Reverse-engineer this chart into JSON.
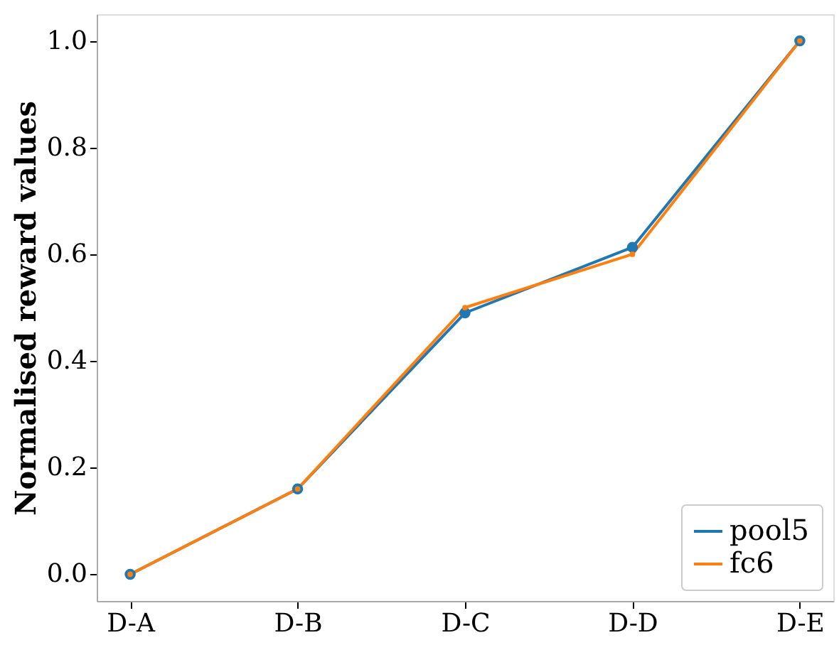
{
  "chart_data": {
    "type": "line",
    "ylabel": "Normalised reward values",
    "categories": [
      "D-A",
      "D-B",
      "D-C",
      "D-D",
      "D-E"
    ],
    "series": [
      {
        "name": "pool5",
        "color": "#1f77b4",
        "values": [
          0.0,
          0.16,
          0.49,
          0.613,
          1.0
        ]
      },
      {
        "name": "fc6",
        "color": "#ff7f0e",
        "values": [
          0.0,
          0.16,
          0.5,
          0.6,
          1.0
        ]
      }
    ],
    "ylim": [
      -0.05,
      1.05
    ],
    "yticks": [
      {
        "value": 0,
        "label": "0.0"
      },
      {
        "value": 0.2,
        "label": "0.2"
      },
      {
        "value": 0.4,
        "label": "0.4"
      },
      {
        "value": 0.6,
        "label": "0.6"
      },
      {
        "value": 0.8,
        "label": "0.8"
      },
      {
        "value": 1.0,
        "label": "1.0"
      }
    ],
    "grid": false,
    "legend": "bottom right",
    "marker": "circle",
    "line_style": "solid"
  }
}
